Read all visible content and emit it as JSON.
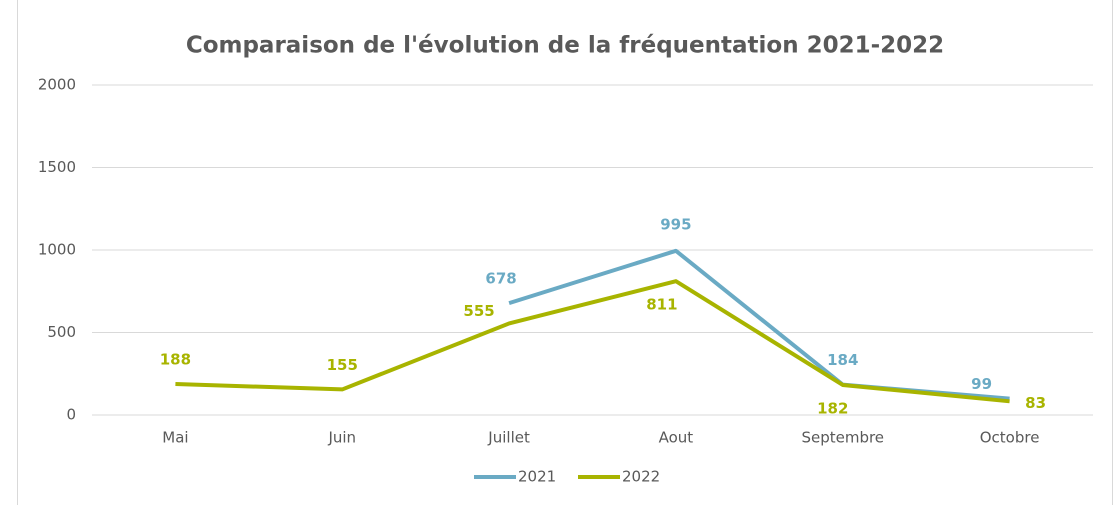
{
  "chart_data": {
    "type": "line",
    "title": "Comparaison de l'évolution de la fréquentation 2021-2022",
    "categories": [
      "Mai",
      "Juin",
      "Juillet",
      "Aout",
      "Septembre",
      "Octobre"
    ],
    "series": [
      {
        "name": "2021",
        "color": "#6aaac4",
        "values": [
          null,
          null,
          678,
          995,
          184,
          99
        ]
      },
      {
        "name": "2022",
        "color": "#a8b400",
        "values": [
          188,
          155,
          555,
          811,
          182,
          83
        ]
      }
    ],
    "ylim": [
      0,
      2000
    ],
    "yticks": [
      0,
      500,
      1000,
      1500,
      2000
    ],
    "grid": true,
    "legend": "bottom"
  }
}
